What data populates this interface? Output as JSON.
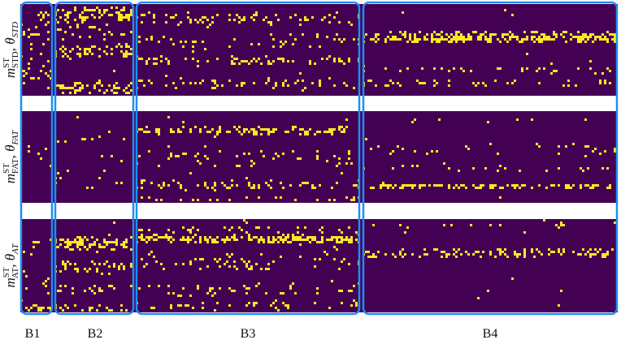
{
  "figure": {
    "rows": [
      {
        "symbol": "m",
        "sup": "ST",
        "sub": "STD",
        "separator": ", ",
        "param": "θ",
        "param_sub": "STD"
      },
      {
        "symbol": "m",
        "sup": "ST",
        "sub": "FAT",
        "separator": ", ",
        "param": "θ",
        "param_sub": "FAT"
      },
      {
        "symbol": "m",
        "sup": "ST",
        "sub": "AT",
        "separator": ", ",
        "param": "θ",
        "param_sub": "AT"
      }
    ],
    "columns": [
      "B1",
      "B2",
      "B3",
      "B4"
    ]
  }
}
